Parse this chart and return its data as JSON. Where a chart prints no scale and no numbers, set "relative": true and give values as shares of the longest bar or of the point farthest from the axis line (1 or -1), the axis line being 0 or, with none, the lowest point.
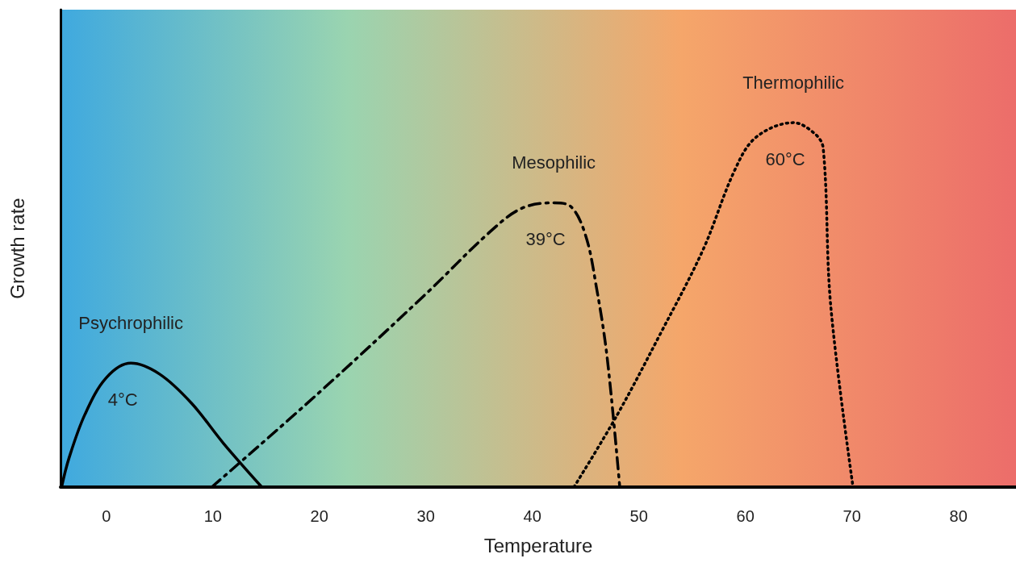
{
  "chart_data": {
    "type": "line",
    "relative": true,
    "xlabel": "Temperature",
    "ylabel": "Growth rate",
    "xlim": [
      -4.3,
      85.4
    ],
    "xticks": [
      0,
      10,
      20,
      30,
      40,
      50,
      60,
      70,
      80
    ],
    "legend": false,
    "grid": false,
    "marker": "none",
    "series": [
      {
        "name": "Psychrophilic",
        "color": "#000000",
        "line_style": "solid",
        "x": [
          -4.2,
          -3.5,
          -2,
          0,
          2.3,
          5,
          8,
          11,
          14.6
        ],
        "values": [
          0,
          0.08,
          0.2,
          0.3,
          0.34,
          0.31,
          0.23,
          0.12,
          0
        ]
      },
      {
        "name": "Mesophilic",
        "color": "#000000",
        "line_style": "dashdot",
        "x": [
          9.9,
          20,
          30,
          36,
          39,
          42,
          43.6,
          45,
          46,
          47,
          48.2
        ],
        "values": [
          0,
          0.26,
          0.53,
          0.7,
          0.765,
          0.78,
          0.77,
          0.69,
          0.55,
          0.36,
          0
        ]
      },
      {
        "name": "Thermophilic",
        "color": "#000000",
        "line_style": "dotted",
        "x": [
          43.9,
          48,
          52,
          56,
          59,
          61,
          64.5,
          66.5,
          67.3,
          68,
          70.1
        ],
        "values": [
          0,
          0.2,
          0.42,
          0.65,
          0.87,
          0.96,
          1,
          0.97,
          0.93,
          0.5,
          0
        ]
      }
    ],
    "annotations": [
      "4°C",
      "39°C",
      "60°C"
    ]
  }
}
